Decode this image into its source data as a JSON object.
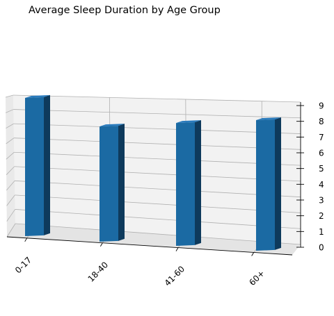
{
  "chart_data": {
    "type": "bar",
    "title": "Average Sleep Duration by Age Group",
    "categories": [
      "0-17",
      "18-40",
      "41-60",
      "60+"
    ],
    "series": [
      {
        "values": [
          9,
          7.5,
          8,
          8.5
        ]
      }
    ],
    "ylim": [
      0,
      9
    ],
    "yticks": [
      "0",
      "1",
      "2",
      "3",
      "4",
      "5",
      "6",
      "7",
      "8",
      "9"
    ],
    "grid": true,
    "colors": {
      "bar_front": "#1b6aa3",
      "bar_side": "#0e3a5c",
      "bar_top": "#2a7bbd",
      "pane": "#f2f2f2",
      "grid": "#b0b0b0"
    }
  }
}
